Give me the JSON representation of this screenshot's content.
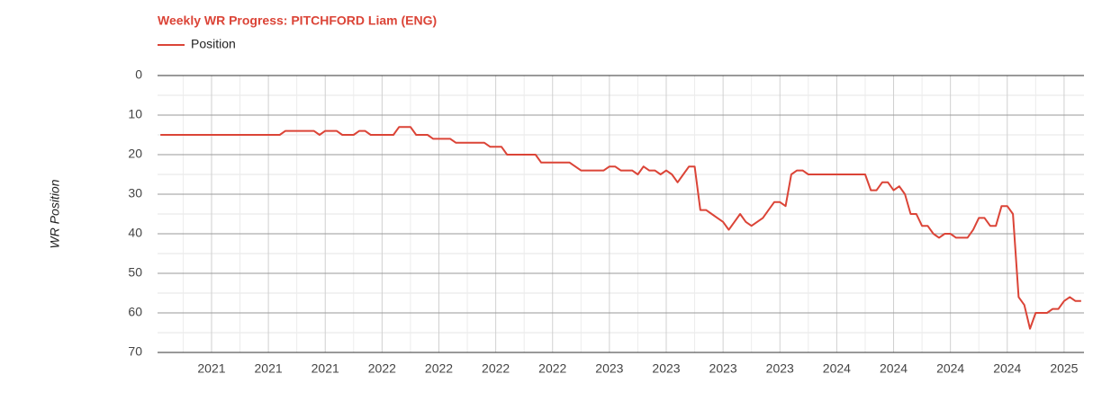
{
  "chart_data": {
    "type": "line",
    "title": "Weekly WR Progress: PITCHFORD Liam (ENG)",
    "y_label": "WR Position",
    "categories": [
      null,
      null,
      null,
      null,
      null,
      null,
      null,
      null,
      null,
      "2021",
      null,
      null,
      null,
      null,
      null,
      null,
      null,
      null,
      null,
      "2021",
      null,
      null,
      null,
      null,
      null,
      null,
      null,
      null,
      null,
      "2021",
      null,
      null,
      null,
      null,
      null,
      null,
      null,
      null,
      null,
      "2022",
      null,
      null,
      null,
      null,
      null,
      null,
      null,
      null,
      null,
      "2022",
      null,
      null,
      null,
      null,
      null,
      null,
      null,
      null,
      null,
      "2022",
      null,
      null,
      null,
      null,
      null,
      null,
      null,
      null,
      null,
      "2022",
      null,
      null,
      null,
      null,
      null,
      null,
      null,
      null,
      null,
      "2023",
      null,
      null,
      null,
      null,
      null,
      null,
      null,
      null,
      null,
      "2023",
      null,
      null,
      null,
      null,
      null,
      null,
      null,
      null,
      null,
      "2023",
      null,
      null,
      null,
      null,
      null,
      null,
      null,
      null,
      null,
      "2023",
      null,
      null,
      null,
      null,
      null,
      null,
      null,
      null,
      null,
      "2024",
      null,
      null,
      null,
      null,
      null,
      null,
      null,
      null,
      null,
      "2024",
      null,
      null,
      null,
      null,
      null,
      null,
      null,
      null,
      null,
      "2024",
      null,
      null,
      null,
      null,
      null,
      null,
      null,
      null,
      null,
      "2024",
      null,
      null,
      null,
      null,
      null,
      null,
      null,
      null,
      null,
      "2025",
      null,
      null,
      null
    ],
    "series": [
      {
        "name": "Position",
        "color": "#db4437",
        "values": [
          15,
          15,
          15,
          15,
          15,
          15,
          15,
          15,
          15,
          15,
          15,
          15,
          15,
          15,
          15,
          15,
          15,
          15,
          15,
          15,
          15,
          15,
          14,
          14,
          14,
          14,
          14,
          14,
          15,
          14,
          14,
          14,
          15,
          15,
          15,
          14,
          14,
          15,
          15,
          15,
          15,
          15,
          13,
          13,
          13,
          15,
          15,
          15,
          16,
          16,
          16,
          16,
          17,
          17,
          17,
          17,
          17,
          17,
          18,
          18,
          18,
          20,
          20,
          20,
          20,
          20,
          20,
          22,
          22,
          22,
          22,
          22,
          22,
          23,
          24,
          24,
          24,
          24,
          24,
          23,
          23,
          24,
          24,
          24,
          25,
          23,
          24,
          24,
          25,
          24,
          25,
          27,
          25,
          23,
          23,
          34,
          34,
          35,
          36,
          37,
          39,
          37,
          35,
          37,
          38,
          37,
          36,
          34,
          32,
          32,
          33,
          25,
          24,
          24,
          25,
          25,
          25,
          25,
          25,
          25,
          25,
          25,
          25,
          25,
          25,
          29,
          29,
          27,
          27,
          29,
          28,
          30,
          35,
          35,
          38,
          38,
          40,
          41,
          40,
          40,
          41,
          41,
          41,
          39,
          36,
          36,
          38,
          38,
          33,
          33,
          35,
          56,
          58,
          64,
          60,
          60,
          60,
          59,
          59,
          57,
          56,
          57,
          57
        ]
      }
    ],
    "ylim": [
      70,
      0
    ],
    "yticks": [
      0,
      10,
      20,
      30,
      40,
      50,
      60,
      70
    ],
    "y_minor_ticks": [
      5,
      15,
      25,
      35,
      45,
      55,
      65
    ],
    "grid": true
  }
}
